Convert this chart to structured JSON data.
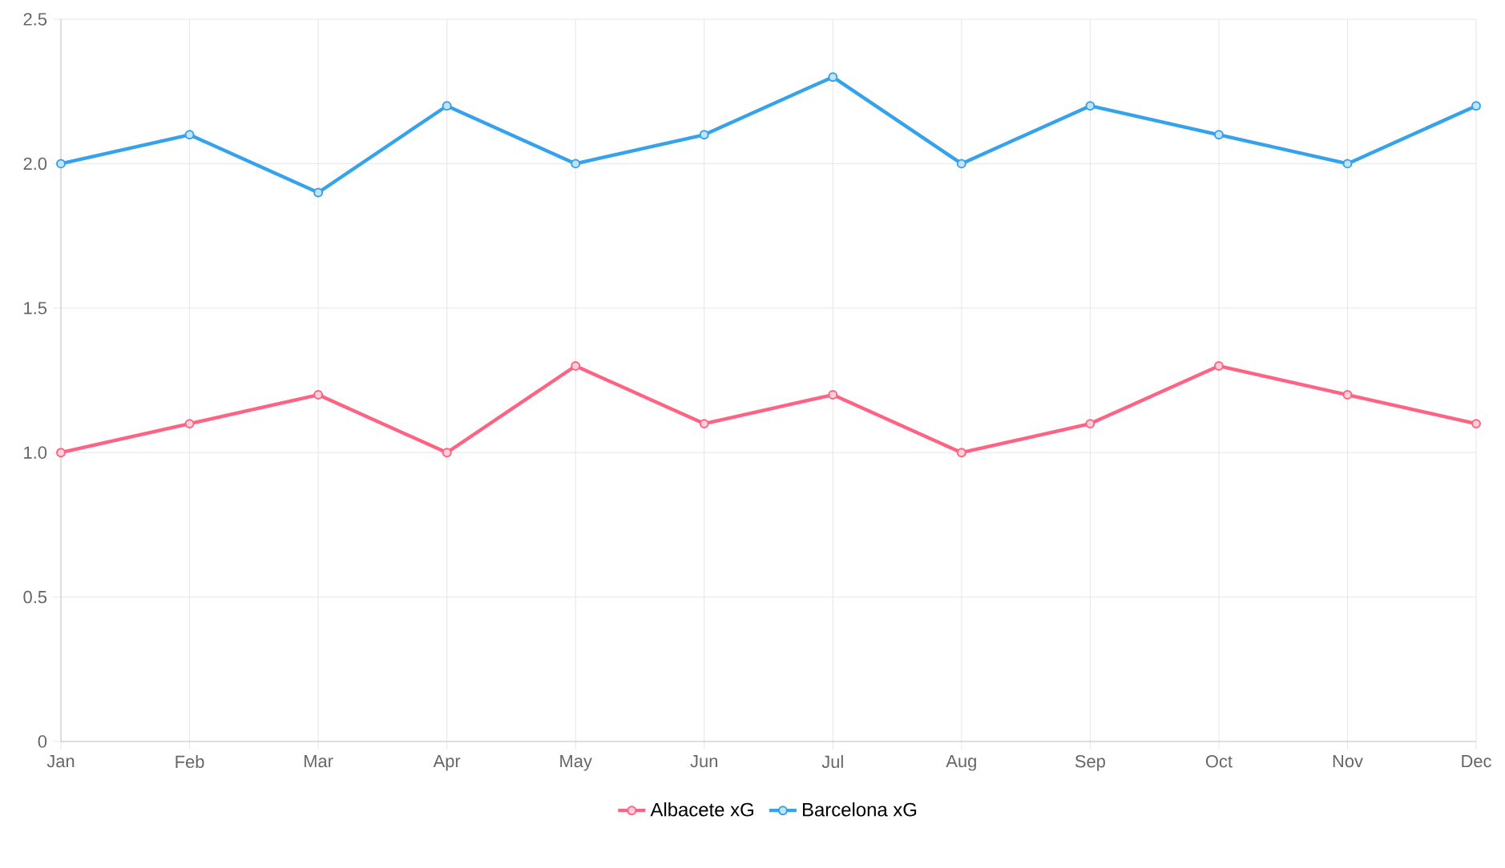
{
  "chart_data": {
    "type": "line",
    "categories": [
      "Jan",
      "Feb",
      "Mar",
      "Apr",
      "May",
      "Jun",
      "Jul",
      "Aug",
      "Sep",
      "Oct",
      "Nov",
      "Dec"
    ],
    "series": [
      {
        "name": "Albacete xG",
        "color": "#ff6384",
        "values": [
          1.0,
          1.1,
          1.2,
          1.0,
          1.3,
          1.1,
          1.2,
          1.0,
          1.1,
          1.3,
          1.2,
          1.1
        ]
      },
      {
        "name": "Barcelona xG",
        "color": "#36a2eb",
        "values": [
          2.0,
          2.1,
          1.9,
          2.2,
          2.0,
          2.1,
          2.3,
          2.0,
          2.2,
          2.1,
          2.0,
          2.2
        ]
      }
    ],
    "ylim": [
      0,
      2.5
    ],
    "yticks": [
      0,
      0.5,
      {
        "value": 1,
        "label": "1.0"
      },
      1.5,
      {
        "value": 2,
        "label": "2.0"
      },
      2.5
    ],
    "grid": true,
    "legend": "bottom",
    "marker": "circle",
    "line_style": "solid"
  }
}
